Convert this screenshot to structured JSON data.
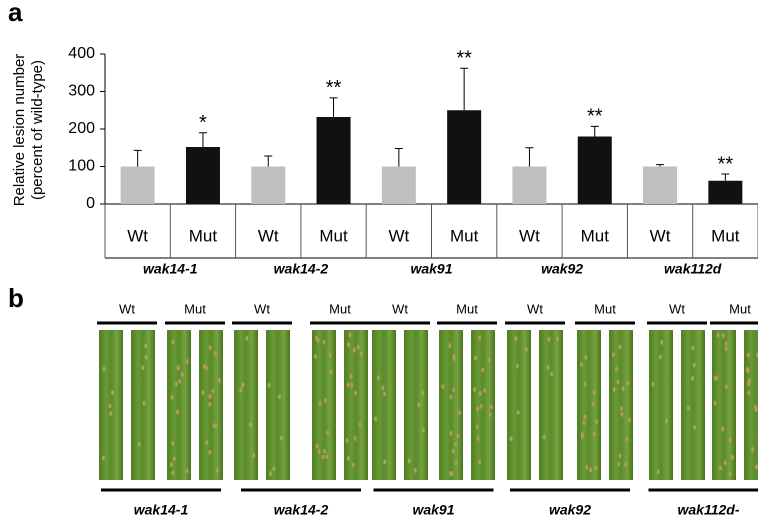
{
  "panel_labels": [
    "a",
    "b"
  ],
  "chart_data": {
    "type": "bar",
    "ylabel": [
      "Relative lesion number",
      "(percent of wild-type)"
    ],
    "categories": [
      "wak14-1",
      "wak14-2",
      "wak91",
      "wak92",
      "wak112d"
    ],
    "series": [
      {
        "name": "Wt",
        "color": "#bfbfbf",
        "values": [
          100,
          100,
          100,
          100,
          100
        ],
        "errors": [
          43,
          28,
          48,
          50,
          5
        ]
      },
      {
        "name": "Mut",
        "color": "#111111",
        "values": [
          152,
          232,
          250,
          180,
          62
        ],
        "errors": [
          38,
          51,
          112,
          27,
          18
        ],
        "value_labels": [
          "*",
          "**",
          "**",
          "**",
          "**"
        ]
      }
    ],
    "ylim": [
      0,
      400
    ],
    "yticks": [
      0,
      100,
      200,
      300,
      400
    ]
  },
  "panel_b": {
    "columns": [
      "Wt",
      "Mut",
      "Wt",
      "Mut",
      "Wt",
      "Mut",
      "Wt",
      "Mut",
      "Wt",
      "Mut"
    ],
    "groups": [
      "wak14-1",
      "wak14-2",
      "wak91",
      "wak92",
      "wak112d-"
    ]
  }
}
